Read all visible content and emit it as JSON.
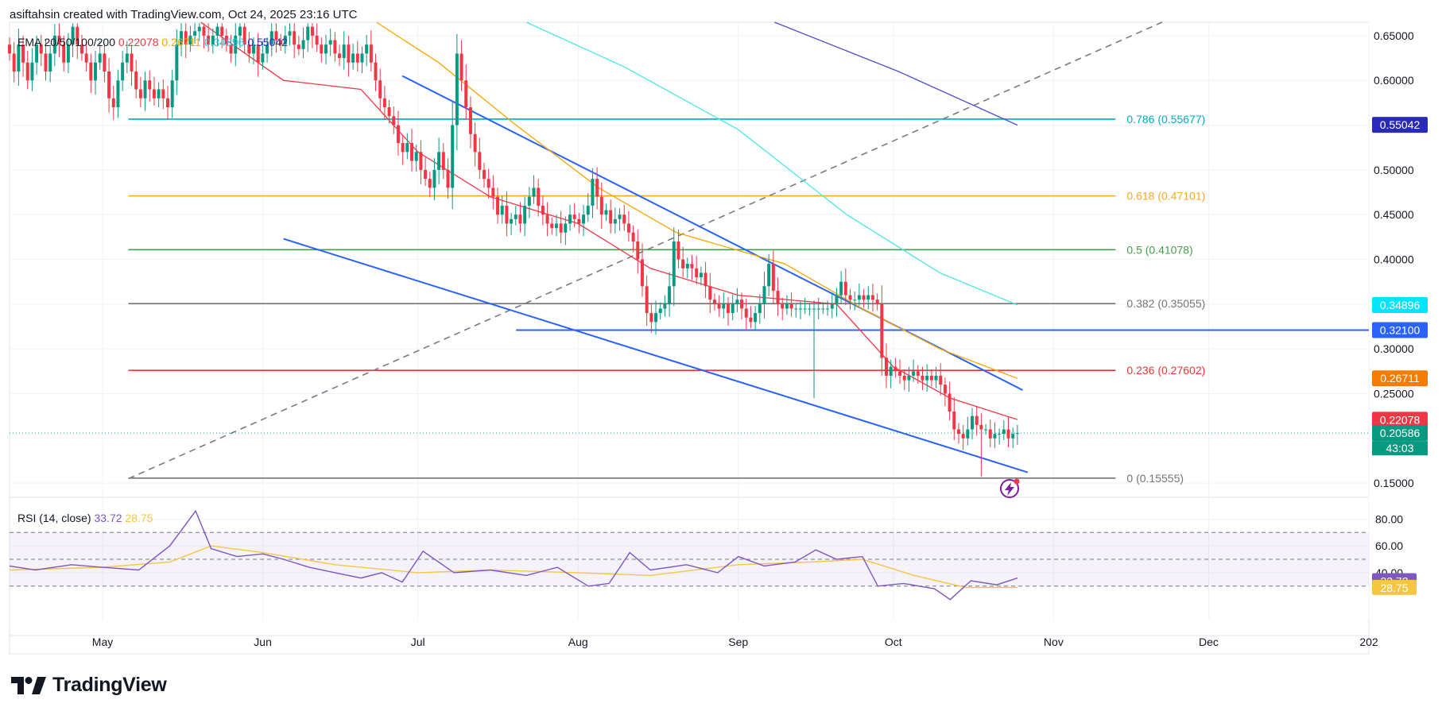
{
  "header": {
    "credit": "asiftahsin created with TradingView.com, Oct 24, 2025 23:16 UTC"
  },
  "brand": {
    "name": "TradingView",
    "logo_icon": "tv-logo-icon"
  },
  "colors": {
    "up": "#089981",
    "down": "#f23645",
    "ema20": "#f23645",
    "ema50": "#f7a500",
    "ema100": "#4fe5e5",
    "ema200": "#4d4dd0",
    "channel": "#2962ff",
    "rsi": "#7e57c2",
    "rsi_ma": "#f7c544"
  },
  "chart_data": [
    {
      "type": "candlestick",
      "title": "",
      "x_range": [
        "2025-04-13",
        "2026-01-01"
      ],
      "ylim": [
        0.135,
        0.665
      ],
      "y_ticks": [
        "0.65000",
        "0.60000",
        "0.55000",
        "0.50000",
        "0.45000",
        "0.40000",
        "0.35000",
        "0.30000",
        "0.25000",
        "0.20000",
        "0.15000"
      ],
      "x_ticks": [
        {
          "label": "May",
          "date": "2025-05-01"
        },
        {
          "label": "Jun",
          "date": "2025-06-01"
        },
        {
          "label": "Jul",
          "date": "2025-07-01"
        },
        {
          "label": "Aug",
          "date": "2025-08-01"
        },
        {
          "label": "Sep",
          "date": "2025-09-01"
        },
        {
          "label": "Oct",
          "date": "2025-10-01"
        },
        {
          "label": "Nov",
          "date": "2025-11-01"
        },
        {
          "label": "Dec",
          "date": "2025-12-01"
        },
        {
          "label": "202",
          "date": "2026-01-01"
        }
      ],
      "ema_legend": {
        "label": "EMA 20/50/100/200",
        "values": [
          {
            "text": "0.22078",
            "color": "#f23645"
          },
          {
            "text": "0.26711",
            "color": "#f7a500"
          },
          {
            "text": "0.34896",
            "color": "#26c6da"
          },
          {
            "text": "0.55042",
            "color": "#2a2ab8"
          }
        ]
      },
      "price_closes": [
        0.63,
        0.61,
        0.64,
        0.62,
        0.6,
        0.62,
        0.64,
        0.63,
        0.61,
        0.63,
        0.65,
        0.64,
        0.62,
        0.64,
        0.66,
        0.64,
        0.63,
        0.62,
        0.6,
        0.62,
        0.63,
        0.61,
        0.58,
        0.57,
        0.6,
        0.62,
        0.63,
        0.61,
        0.59,
        0.58,
        0.6,
        0.59,
        0.58,
        0.59,
        0.58,
        0.57,
        0.6,
        0.64,
        0.655,
        0.64,
        0.65,
        0.655,
        0.66,
        0.65,
        0.64,
        0.65,
        0.66,
        0.65,
        0.64,
        0.63,
        0.65,
        0.66,
        0.64,
        0.63,
        0.64,
        0.62,
        0.63,
        0.64,
        0.655,
        0.645,
        0.64,
        0.65,
        0.655,
        0.64,
        0.635,
        0.645,
        0.66,
        0.65,
        0.64,
        0.63,
        0.64,
        0.645,
        0.63,
        0.625,
        0.64,
        0.62,
        0.63,
        0.62,
        0.63,
        0.64,
        0.62,
        0.6,
        0.58,
        0.57,
        0.56,
        0.55,
        0.53,
        0.52,
        0.53,
        0.51,
        0.52,
        0.5,
        0.49,
        0.48,
        0.5,
        0.52,
        0.5,
        0.48,
        0.55,
        0.63,
        0.6,
        0.57,
        0.54,
        0.52,
        0.5,
        0.49,
        0.48,
        0.47,
        0.45,
        0.46,
        0.44,
        0.445,
        0.45,
        0.44,
        0.46,
        0.47,
        0.48,
        0.46,
        0.45,
        0.44,
        0.435,
        0.44,
        0.43,
        0.44,
        0.45,
        0.445,
        0.44,
        0.45,
        0.46,
        0.49,
        0.47,
        0.45,
        0.455,
        0.44,
        0.445,
        0.45,
        0.44,
        0.43,
        0.42,
        0.4,
        0.37,
        0.34,
        0.33,
        0.34,
        0.345,
        0.35,
        0.37,
        0.42,
        0.4,
        0.39,
        0.395,
        0.39,
        0.38,
        0.385,
        0.37,
        0.355,
        0.35,
        0.345,
        0.35,
        0.34,
        0.35,
        0.355,
        0.345,
        0.335,
        0.33,
        0.34,
        0.35,
        0.37,
        0.395,
        0.365,
        0.35,
        0.345,
        0.35,
        0.345,
        0.345,
        0.345,
        0.345,
        0.345,
        0.345,
        0.345,
        0.345,
        0.345,
        0.35,
        0.36,
        0.375,
        0.36,
        0.355,
        0.355,
        0.36,
        0.355,
        0.36,
        0.355,
        0.35,
        0.29,
        0.27,
        0.28,
        0.275,
        0.27,
        0.265,
        0.27,
        0.275,
        0.27,
        0.265,
        0.27,
        0.265,
        0.27,
        0.26,
        0.25,
        0.23,
        0.21,
        0.205,
        0.2,
        0.21,
        0.225,
        0.215,
        0.21,
        0.21,
        0.2,
        0.205,
        0.205,
        0.21,
        0.2,
        0.205,
        0.2059
      ],
      "fib_levels": [
        {
          "ratio": "0.786",
          "value": 0.55677,
          "label": "0.786 (0.55677)",
          "color": "#00acc1"
        },
        {
          "ratio": "0.618",
          "value": 0.47101,
          "label": "0.618 (0.47101)",
          "color": "#f9a825"
        },
        {
          "ratio": "0.5",
          "value": 0.41078,
          "label": "0.5 (0.41078)",
          "color": "#43a047"
        },
        {
          "ratio": "0.382",
          "value": 0.35055,
          "label": "0.382 (0.35055)",
          "color": "#757575"
        },
        {
          "ratio": "0.236",
          "value": 0.27602,
          "label": "0.236 (0.27602)",
          "color": "#e53935"
        },
        {
          "ratio": "0",
          "value": 0.15555,
          "label": "0 (0.15555)",
          "color": "#757575"
        }
      ],
      "horizontal_line": {
        "value": 0.321,
        "start_date": "2025-07-20",
        "color": "#2962ff"
      },
      "channel_lines": [
        {
          "name": "upper",
          "from": {
            "date": "2025-06-28",
            "price": 0.605
          },
          "to": {
            "date": "2025-10-26",
            "price": 0.254
          }
        },
        {
          "name": "lower",
          "from": {
            "date": "2025-06-05",
            "price": 0.423
          },
          "to": {
            "date": "2025-10-27",
            "price": 0.162
          }
        }
      ],
      "trend_line": {
        "from": {
          "date": "2025-05-06",
          "price": 0.155
        },
        "to": {
          "date": "2025-11-22",
          "price": 0.665
        }
      },
      "ema_curves": [
        {
          "name": "ema200",
          "color": "#4d4dd0",
          "points": [
            [
              "2025-09-08",
              0.665
            ],
            [
              "2025-10-02",
              0.61
            ],
            [
              "2025-10-25",
              0.55
            ]
          ]
        },
        {
          "name": "ema100",
          "color": "#4fe5e5",
          "points": [
            [
              "2025-07-22",
              0.665
            ],
            [
              "2025-08-10",
              0.615
            ],
            [
              "2025-09-01",
              0.545
            ],
            [
              "2025-09-22",
              0.45
            ],
            [
              "2025-10-10",
              0.385
            ],
            [
              "2025-10-25",
              0.349
            ]
          ]
        },
        {
          "name": "ema50",
          "color": "#f7a500",
          "points": [
            [
              "2025-06-23",
              0.665
            ],
            [
              "2025-07-05",
              0.62
            ],
            [
              "2025-07-20",
              0.55
            ],
            [
              "2025-08-05",
              0.48
            ],
            [
              "2025-08-20",
              0.43
            ],
            [
              "2025-09-10",
              0.395
            ],
            [
              "2025-09-25",
              0.345
            ],
            [
              "2025-10-10",
              0.3
            ],
            [
              "2025-10-25",
              0.267
            ]
          ]
        },
        {
          "name": "ema20",
          "color": "#f23645",
          "points": [
            [
              "2025-05-20",
              0.665
            ],
            [
              "2025-06-05",
              0.6
            ],
            [
              "2025-06-20",
              0.59
            ],
            [
              "2025-07-01",
              0.52
            ],
            [
              "2025-07-15",
              0.47
            ],
            [
              "2025-08-01",
              0.44
            ],
            [
              "2025-08-15",
              0.39
            ],
            [
              "2025-09-01",
              0.36
            ],
            [
              "2025-09-20",
              0.35
            ],
            [
              "2025-10-01",
              0.28
            ],
            [
              "2025-10-12",
              0.245
            ],
            [
              "2025-10-25",
              0.221
            ]
          ]
        }
      ],
      "price_tags": [
        {
          "text": "0.55042",
          "value": 0.55042,
          "color": "#2a2ab8"
        },
        {
          "text": "0.34896",
          "value": 0.34896,
          "color": "#00e5ff"
        },
        {
          "text": "0.32100",
          "value": 0.321,
          "color": "#2962ff"
        },
        {
          "text": "0.26711",
          "value": 0.26711,
          "color": "#f57c00"
        },
        {
          "text": "0.22078",
          "value": 0.22078,
          "color": "#f23645"
        },
        {
          "text": "0.20586",
          "value": 0.20586,
          "color": "#089981"
        }
      ],
      "countdown": "43:03",
      "annotation_icon": "lightning-icon"
    },
    {
      "type": "line",
      "title": "",
      "legend_label": "RSI (14, close)",
      "rsi_value": "33.72",
      "rsi_ma_value": "28.75",
      "ylim": [
        5,
        95
      ],
      "y_ticks": [
        "80.00",
        "60.00",
        "40.00"
      ],
      "band": [
        30,
        70
      ],
      "mid": 50,
      "rsi_series": [
        [
          "2025-04-13",
          45
        ],
        [
          "2025-04-18",
          42
        ],
        [
          "2025-04-25",
          46
        ],
        [
          "2025-05-01",
          44
        ],
        [
          "2025-05-08",
          42
        ],
        [
          "2025-05-14",
          60
        ],
        [
          "2025-05-19",
          86
        ],
        [
          "2025-05-22",
          58
        ],
        [
          "2025-05-27",
          52
        ],
        [
          "2025-06-01",
          54
        ],
        [
          "2025-06-05",
          50
        ],
        [
          "2025-06-10",
          44
        ],
        [
          "2025-06-15",
          40
        ],
        [
          "2025-06-20",
          36
        ],
        [
          "2025-06-24",
          40
        ],
        [
          "2025-06-28",
          33
        ],
        [
          "2025-07-02",
          56
        ],
        [
          "2025-07-08",
          40
        ],
        [
          "2025-07-15",
          42
        ],
        [
          "2025-07-22",
          38
        ],
        [
          "2025-07-28",
          44
        ],
        [
          "2025-08-03",
          30
        ],
        [
          "2025-08-07",
          32
        ],
        [
          "2025-08-11",
          55
        ],
        [
          "2025-08-15",
          42
        ],
        [
          "2025-08-22",
          46
        ],
        [
          "2025-08-28",
          40
        ],
        [
          "2025-09-01",
          52
        ],
        [
          "2025-09-06",
          45
        ],
        [
          "2025-09-12",
          48
        ],
        [
          "2025-09-16",
          57
        ],
        [
          "2025-09-20",
          50
        ],
        [
          "2025-09-25",
          52
        ],
        [
          "2025-09-28",
          30
        ],
        [
          "2025-10-03",
          32
        ],
        [
          "2025-10-09",
          28
        ],
        [
          "2025-10-12",
          20
        ],
        [
          "2025-10-16",
          34
        ],
        [
          "2025-10-21",
          31
        ],
        [
          "2025-10-25",
          36
        ]
      ],
      "rsi_ma_series": [
        [
          "2025-04-13",
          42
        ],
        [
          "2025-05-01",
          44
        ],
        [
          "2025-05-14",
          48
        ],
        [
          "2025-05-22",
          60
        ],
        [
          "2025-06-01",
          55
        ],
        [
          "2025-06-15",
          46
        ],
        [
          "2025-07-01",
          40
        ],
        [
          "2025-07-15",
          42
        ],
        [
          "2025-08-01",
          40
        ],
        [
          "2025-08-15",
          38
        ],
        [
          "2025-09-01",
          46
        ],
        [
          "2025-09-15",
          48
        ],
        [
          "2025-09-25",
          50
        ],
        [
          "2025-10-05",
          38
        ],
        [
          "2025-10-15",
          29
        ],
        [
          "2025-10-25",
          29
        ]
      ],
      "tags": [
        {
          "text": "33.72",
          "value": 33.72,
          "color": "#7e57c2",
          "text_color": "#ffffff"
        },
        {
          "text": "28.75",
          "value": 28.75,
          "color": "#f7c544",
          "text_color": "#131722"
        }
      ]
    }
  ]
}
